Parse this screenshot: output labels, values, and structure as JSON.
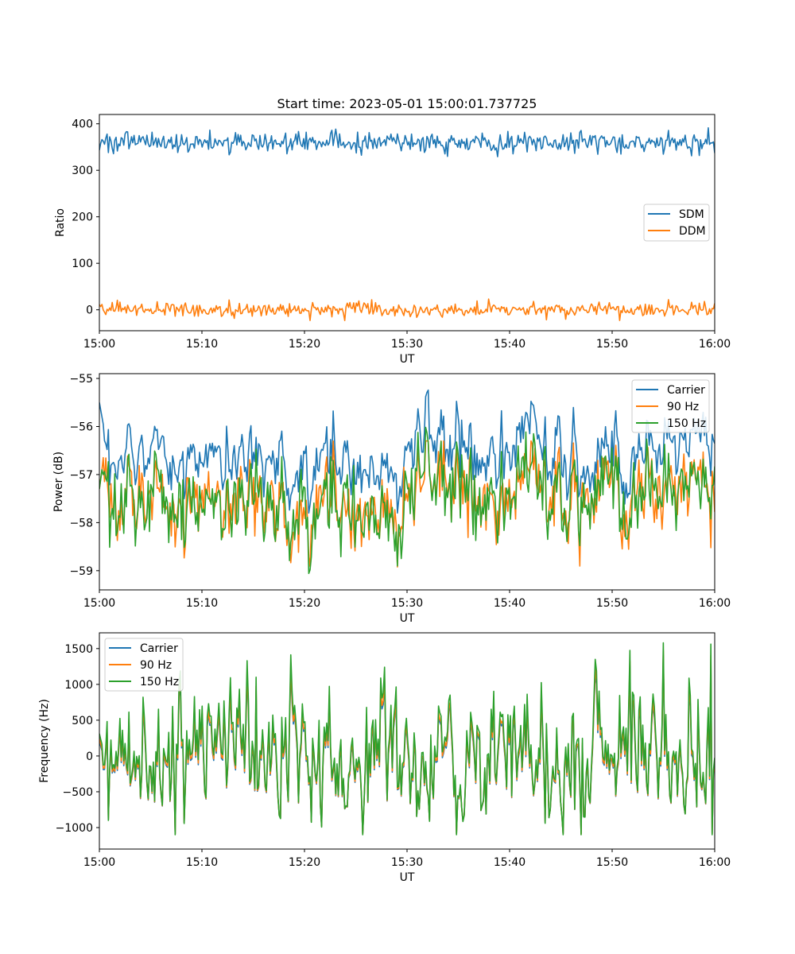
{
  "figure": {
    "title": "Start time: 2023-05-01 15:00:01.737725"
  },
  "chart_data": [
    {
      "type": "line",
      "title": "Start time: 2023-05-01 15:00:01.737725",
      "xlabel": "UT",
      "ylabel": "Ratio",
      "x_range": [
        "15:00",
        "16:00"
      ],
      "ylim": [
        -45,
        420
      ],
      "x_ticks": [
        "15:00",
        "15:10",
        "15:20",
        "15:30",
        "15:40",
        "15:50",
        "16:00"
      ],
      "y_ticks": [
        0,
        100,
        200,
        300,
        400
      ],
      "y_tick_labels": [
        "0",
        "100",
        "200",
        "300",
        "400"
      ],
      "legend_position": "center-right",
      "grid": false,
      "series": [
        {
          "name": "SDM",
          "color": "#1f77b4",
          "mean": 360,
          "amplitude": 14,
          "samples": 480,
          "min": 311,
          "max": 399
        },
        {
          "name": "DDM",
          "color": "#ff7f0e",
          "mean": 0,
          "amplitude": 9,
          "samples": 480,
          "min": -23,
          "max": 27
        }
      ]
    },
    {
      "type": "line",
      "xlabel": "UT",
      "ylabel": "Power (dB)",
      "x_range": [
        "15:00",
        "16:00"
      ],
      "ylim": [
        -59.4,
        -54.9
      ],
      "x_ticks": [
        "15:00",
        "15:10",
        "15:20",
        "15:30",
        "15:40",
        "15:50",
        "16:00"
      ],
      "y_ticks": [
        -55,
        -56,
        -57,
        -58,
        -59
      ],
      "y_tick_labels": [
        "−55",
        "−56",
        "−57",
        "−58",
        "−59"
      ],
      "legend_position": "top-right",
      "grid": false,
      "series": [
        {
          "name": "Carrier",
          "color": "#1f77b4",
          "mean": -56.6,
          "amplitude": 0.35,
          "samples": 480,
          "min": -57.8,
          "max": -55.1
        },
        {
          "name": "90 Hz",
          "color": "#ff7f0e",
          "mean": -57.5,
          "amplitude": 0.35,
          "samples": 480,
          "min": -59.0,
          "max": -56.3
        },
        {
          "name": "150 Hz",
          "color": "#2ca02c",
          "mean": -57.5,
          "amplitude": 0.35,
          "samples": 480,
          "min": -59.2,
          "max": -55.9
        }
      ]
    },
    {
      "type": "line",
      "xlabel": "UT",
      "ylabel": "Frequency (Hz)",
      "x_range": [
        "15:00",
        "16:00"
      ],
      "ylim": [
        -1300,
        1720
      ],
      "x_ticks": [
        "15:00",
        "15:10",
        "15:20",
        "15:30",
        "15:40",
        "15:50",
        "16:00"
      ],
      "y_ticks": [
        1500,
        1000,
        500,
        0,
        -500,
        -1000
      ],
      "y_tick_labels": [
        "1500",
        "1000",
        "500",
        "0",
        "−500",
        "−1000"
      ],
      "legend_position": "top-left",
      "grid": false,
      "series": [
        {
          "name": "Carrier",
          "color": "#1f77b4",
          "offset": -40,
          "amplitude": 420,
          "samples": 480,
          "min": -1160,
          "max": 1560
        },
        {
          "name": "90 Hz",
          "color": "#ff7f0e",
          "offset": -15,
          "amplitude": 420,
          "samples": 480,
          "min": -1130,
          "max": 1570
        },
        {
          "name": "150 Hz",
          "color": "#2ca02c",
          "offset": 40,
          "amplitude": 420,
          "samples": 480,
          "min": -1100,
          "max": 1580
        }
      ]
    }
  ]
}
